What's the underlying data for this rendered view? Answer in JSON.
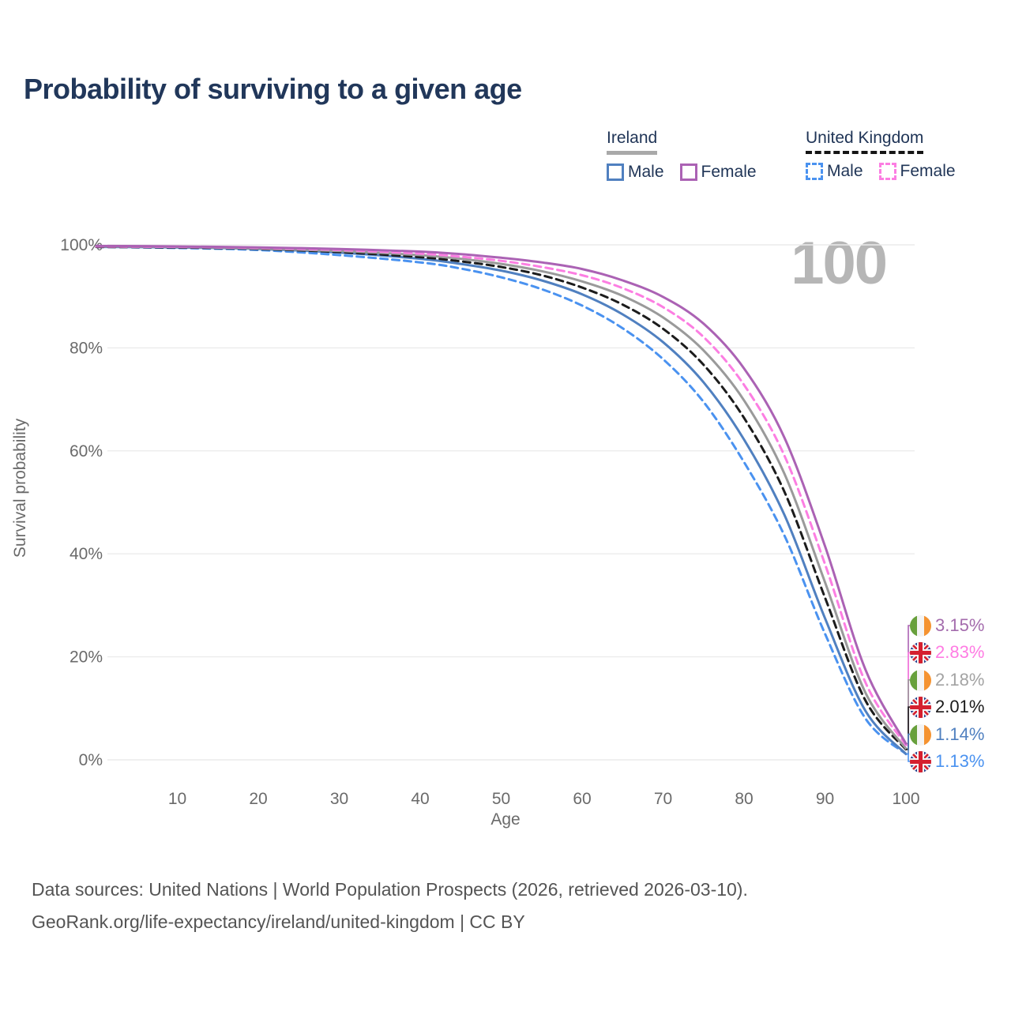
{
  "title": "Probability of surviving to a given age",
  "watermark_age": "100",
  "legend": {
    "groups": [
      {
        "title": "Ireland",
        "line_style": "solid",
        "underline_color": "#a9a9a9",
        "items": [
          {
            "label": "Male",
            "color": "#5080c0",
            "dashed": false
          },
          {
            "label": "Female",
            "color": "#ab62b4",
            "dashed": false
          }
        ]
      },
      {
        "title": "United Kingdom",
        "line_style": "dashed",
        "underline_color": "#151515",
        "items": [
          {
            "label": "Male",
            "color": "#4a92f0",
            "dashed": true
          },
          {
            "label": "Female",
            "color": "#fc7ee2",
            "dashed": true
          }
        ]
      }
    ]
  },
  "chart_data": {
    "type": "line",
    "title": "Probability of surviving to a given age",
    "xlabel": "Age",
    "ylabel": "Survival probability",
    "xlim": [
      0,
      100
    ],
    "ylim": [
      0,
      100
    ],
    "grid": "horizontal",
    "legend_position": "top-right",
    "x_ticks": [
      10,
      20,
      30,
      40,
      50,
      60,
      70,
      80,
      90,
      100
    ],
    "y_ticks": [
      {
        "value": 0,
        "label": "0%"
      },
      {
        "value": 20,
        "label": "20%"
      },
      {
        "value": 40,
        "label": "40%"
      },
      {
        "value": 60,
        "label": "60%"
      },
      {
        "value": 80,
        "label": "80%"
      },
      {
        "value": 100,
        "label": "100%"
      }
    ],
    "series": [
      {
        "id": "ireland-female",
        "country": "Ireland",
        "sex": "Female",
        "color": "#ab62b4",
        "dashed": false,
        "flag": "ireland",
        "end_label": "3.15%",
        "end_label_color": "#a46cad",
        "points": [
          [
            0,
            99.8
          ],
          [
            10,
            99.7
          ],
          [
            20,
            99.5
          ],
          [
            30,
            99.2
          ],
          [
            40,
            98.7
          ],
          [
            45,
            98.2
          ],
          [
            50,
            97.5
          ],
          [
            55,
            96.6
          ],
          [
            60,
            95.3
          ],
          [
            65,
            93.1
          ],
          [
            70,
            89.9
          ],
          [
            75,
            84.7
          ],
          [
            80,
            76.0
          ],
          [
            85,
            62.5
          ],
          [
            90,
            41.5
          ],
          [
            95,
            17.5
          ],
          [
            100,
            3.15
          ]
        ]
      },
      {
        "id": "uk-female",
        "country": "United Kingdom",
        "sex": "Female",
        "color": "#fc7ee2",
        "dashed": true,
        "flag": "uk",
        "end_label": "2.83%",
        "end_label_color": "#ff7ce3",
        "points": [
          [
            0,
            99.7
          ],
          [
            10,
            99.6
          ],
          [
            20,
            99.4
          ],
          [
            30,
            99.0
          ],
          [
            40,
            98.3
          ],
          [
            45,
            97.7
          ],
          [
            50,
            96.9
          ],
          [
            55,
            95.7
          ],
          [
            60,
            94.1
          ],
          [
            65,
            91.6
          ],
          [
            70,
            87.9
          ],
          [
            75,
            82.1
          ],
          [
            80,
            72.8
          ],
          [
            85,
            59.0
          ],
          [
            90,
            38.0
          ],
          [
            95,
            15.0
          ],
          [
            100,
            2.83
          ]
        ]
      },
      {
        "id": "ireland-total",
        "country": "Ireland",
        "sex": "Both",
        "color": "#9a9a9a",
        "dashed": false,
        "flag": "ireland",
        "end_label": "2.18%",
        "end_label_color": "#a3a3a3",
        "points": [
          [
            0,
            99.7
          ],
          [
            10,
            99.6
          ],
          [
            20,
            99.3
          ],
          [
            30,
            98.8
          ],
          [
            40,
            98.0
          ],
          [
            45,
            97.3
          ],
          [
            50,
            96.3
          ],
          [
            55,
            94.9
          ],
          [
            60,
            92.9
          ],
          [
            65,
            90.1
          ],
          [
            70,
            85.9
          ],
          [
            75,
            79.5
          ],
          [
            80,
            69.8
          ],
          [
            85,
            55.5
          ],
          [
            90,
            34.5
          ],
          [
            95,
            13.0
          ],
          [
            100,
            2.18
          ]
        ]
      },
      {
        "id": "uk-total",
        "country": "United Kingdom",
        "sex": "Both",
        "color": "#1c1c1c",
        "dashed": true,
        "flag": "uk",
        "end_label": "2.01%",
        "end_label_color": "#1a1a1a",
        "points": [
          [
            0,
            99.6
          ],
          [
            10,
            99.5
          ],
          [
            20,
            99.2
          ],
          [
            30,
            98.6
          ],
          [
            40,
            97.6
          ],
          [
            45,
            96.8
          ],
          [
            50,
            95.7
          ],
          [
            55,
            94.1
          ],
          [
            60,
            91.7
          ],
          [
            65,
            88.4
          ],
          [
            70,
            83.7
          ],
          [
            75,
            76.7
          ],
          [
            80,
            66.4
          ],
          [
            85,
            52.0
          ],
          [
            90,
            31.5
          ],
          [
            95,
            11.5
          ],
          [
            100,
            2.01
          ]
        ]
      },
      {
        "id": "ireland-male",
        "country": "Ireland",
        "sex": "Male",
        "color": "#5080c0",
        "dashed": false,
        "flag": "ireland",
        "end_label": "1.14%",
        "end_label_color": "#5080c0",
        "points": [
          [
            0,
            99.6
          ],
          [
            10,
            99.5
          ],
          [
            20,
            99.2
          ],
          [
            30,
            98.5
          ],
          [
            40,
            97.3
          ],
          [
            45,
            96.3
          ],
          [
            50,
            95.0
          ],
          [
            55,
            93.1
          ],
          [
            60,
            90.4
          ],
          [
            65,
            86.5
          ],
          [
            70,
            81.1
          ],
          [
            75,
            73.3
          ],
          [
            80,
            62.2
          ],
          [
            85,
            47.5
          ],
          [
            90,
            27.5
          ],
          [
            95,
            9.5
          ],
          [
            100,
            1.14
          ]
        ]
      },
      {
        "id": "uk-male",
        "country": "United Kingdom",
        "sex": "Male",
        "color": "#4a92f0",
        "dashed": true,
        "flag": "uk",
        "end_label": "1.13%",
        "end_label_color": "#4a92f0",
        "points": [
          [
            0,
            99.6
          ],
          [
            10,
            99.4
          ],
          [
            20,
            99.0
          ],
          [
            30,
            98.0
          ],
          [
            40,
            96.6
          ],
          [
            45,
            95.4
          ],
          [
            50,
            93.7
          ],
          [
            55,
            91.4
          ],
          [
            60,
            88.2
          ],
          [
            65,
            83.8
          ],
          [
            70,
            77.8
          ],
          [
            75,
            69.5
          ],
          [
            80,
            57.8
          ],
          [
            85,
            43.5
          ],
          [
            90,
            24.5
          ],
          [
            95,
            8.0
          ],
          [
            100,
            1.13
          ]
        ]
      }
    ]
  },
  "footer": {
    "line1": "Data sources: United Nations | World Population Prospects (2026, retrieved 2026-03-10).",
    "line2": "GeoRank.org/life-expectancy/ireland/united-kingdom | CC BY"
  }
}
